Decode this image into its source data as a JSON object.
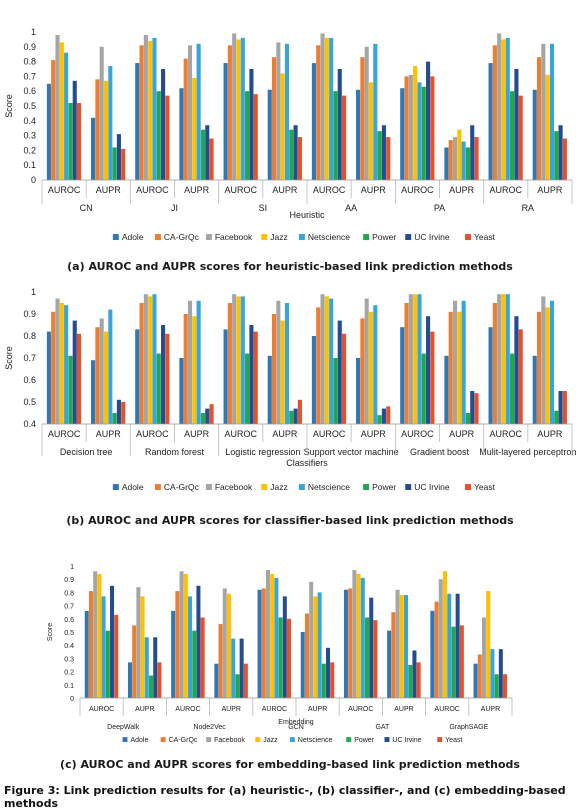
{
  "series_names": [
    "Adole",
    "CA-GrQc",
    "Facebook",
    "Jazz",
    "Netscience",
    "Power",
    "UC Irvine",
    "Yeast"
  ],
  "colors": [
    "#2f78b5",
    "#ee7d31",
    "#a5a5a5",
    "#fdc100",
    "#37a5dd",
    "#21a84a",
    "#244c8f",
    "#e5512c"
  ],
  "captions": {
    "a": "(a)  AUROC and AUPR scores for heuristic-based link prediction methods",
    "b": "(b)  AUROC and AUPR scores for classifier-based link prediction methods",
    "c": "(c)  AUROC and AUPR scores for embedding-based link prediction methods",
    "figure": "Figure 3: Link prediction results for (a) heuristic-, (b) classifier-, and (c) embedding-based methods"
  },
  "chart_data": [
    {
      "type": "bar",
      "ylabel": "Score",
      "xlabel": "Heuristic",
      "groups": [
        "CN",
        "JI",
        "SI",
        "AA",
        "PA",
        "RA"
      ],
      "subgroups": [
        "AUROC",
        "AUPR"
      ],
      "ylim": [
        0,
        1
      ],
      "yticks": [
        "0",
        "0.1",
        "0.2",
        "0.3",
        "0.4",
        "0.5",
        "0.6",
        "0.7",
        "0.8",
        "0.9",
        "1"
      ],
      "legend_position": "bottom",
      "series": [
        {
          "name": "Adole",
          "values": [
            0.65,
            0.42,
            0.79,
            0.62,
            0.79,
            0.61,
            0.79,
            0.61,
            0.62,
            0.22,
            0.79,
            0.61
          ]
        },
        {
          "name": "CA-GrQc",
          "values": [
            0.81,
            0.68,
            0.91,
            0.82,
            0.91,
            0.83,
            0.91,
            0.83,
            0.7,
            0.27,
            0.91,
            0.83
          ]
        },
        {
          "name": "Facebook",
          "values": [
            0.98,
            0.9,
            0.98,
            0.91,
            0.99,
            0.93,
            0.99,
            0.9,
            0.71,
            0.29,
            0.99,
            0.92
          ]
        },
        {
          "name": "Jazz",
          "values": [
            0.93,
            0.67,
            0.94,
            0.69,
            0.95,
            0.72,
            0.96,
            0.66,
            0.77,
            0.34,
            0.95,
            0.71
          ]
        },
        {
          "name": "Netscience",
          "values": [
            0.86,
            0.77,
            0.96,
            0.92,
            0.96,
            0.92,
            0.96,
            0.92,
            0.66,
            0.26,
            0.96,
            0.92
          ]
        },
        {
          "name": "Power",
          "values": [
            0.52,
            0.22,
            0.6,
            0.34,
            0.6,
            0.34,
            0.6,
            0.33,
            0.63,
            0.22,
            0.6,
            0.33
          ]
        },
        {
          "name": "UC Irvine",
          "values": [
            0.67,
            0.31,
            0.75,
            0.37,
            0.75,
            0.37,
            0.75,
            0.37,
            0.8,
            0.37,
            0.75,
            0.37
          ]
        },
        {
          "name": "Yeast",
          "values": [
            0.52,
            0.21,
            0.57,
            0.28,
            0.58,
            0.29,
            0.57,
            0.29,
            0.7,
            0.29,
            0.57,
            0.28
          ]
        }
      ]
    },
    {
      "type": "bar",
      "ylabel": "Score",
      "xlabel": "Classifiers",
      "groups": [
        "Decision tree",
        "Random forest",
        "Logistic regression",
        "Support vector machine",
        "Gradient boost",
        "Mulit-layered perceptron"
      ],
      "subgroups": [
        "AUROC",
        "AUPR"
      ],
      "ylim": [
        0.4,
        1
      ],
      "yticks": [
        "0.4",
        "0.5",
        "0.6",
        "0.7",
        "0.8",
        "0.9",
        "1"
      ],
      "legend_position": "bottom",
      "series": [
        {
          "name": "Adole",
          "values": [
            0.82,
            0.69,
            0.83,
            0.7,
            0.83,
            0.71,
            0.8,
            0.7,
            0.84,
            0.71,
            0.84,
            0.71
          ]
        },
        {
          "name": "CA-GrQc",
          "values": [
            0.91,
            0.84,
            0.95,
            0.9,
            0.95,
            0.9,
            0.93,
            0.88,
            0.95,
            0.91,
            0.95,
            0.91
          ]
        },
        {
          "name": "Facebook",
          "values": [
            0.97,
            0.88,
            0.99,
            0.96,
            0.99,
            0.96,
            0.99,
            0.97,
            0.99,
            0.96,
            0.99,
            0.98
          ]
        },
        {
          "name": "Jazz",
          "values": [
            0.95,
            0.82,
            0.98,
            0.89,
            0.98,
            0.87,
            0.98,
            0.91,
            0.99,
            0.91,
            0.99,
            0.93
          ]
        },
        {
          "name": "Netscience",
          "values": [
            0.94,
            0.92,
            0.99,
            0.96,
            0.98,
            0.95,
            0.97,
            0.94,
            0.99,
            0.96,
            0.99,
            0.96
          ]
        },
        {
          "name": "Power",
          "values": [
            0.71,
            0.45,
            0.72,
            0.45,
            0.72,
            0.46,
            0.7,
            0.44,
            0.72,
            0.45,
            0.72,
            0.46
          ]
        },
        {
          "name": "UC Irvine",
          "values": [
            0.87,
            0.51,
            0.85,
            0.47,
            0.85,
            0.47,
            0.87,
            0.47,
            0.89,
            0.55,
            0.89,
            0.55
          ]
        },
        {
          "name": "Yeast",
          "values": [
            0.81,
            0.5,
            0.81,
            0.49,
            0.82,
            0.51,
            0.81,
            0.48,
            0.82,
            0.54,
            0.83,
            0.55
          ]
        }
      ]
    },
    {
      "type": "bar",
      "ylabel": "Score",
      "xlabel": "Embedding",
      "groups": [
        "DeepWalk",
        "Node2Vec",
        "GCN",
        "GAT",
        "GraphSAGE"
      ],
      "subgroups": [
        "AUROC",
        "AUPR"
      ],
      "ylim": [
        0,
        1
      ],
      "yticks": [
        "0",
        "0.1",
        "0.2",
        "0.3",
        "0.4",
        "0.5",
        "0.6",
        "0.7",
        "0.8",
        "0.9",
        "1"
      ],
      "legend_position": "bottom",
      "series": [
        {
          "name": "Adole",
          "values": [
            0.66,
            0.27,
            0.66,
            0.26,
            0.82,
            0.5,
            0.82,
            0.51,
            0.66,
            0.26
          ]
        },
        {
          "name": "CA-GrQc",
          "values": [
            0.81,
            0.55,
            0.81,
            0.56,
            0.83,
            0.64,
            0.83,
            0.65,
            0.73,
            0.33
          ]
        },
        {
          "name": "Facebook",
          "values": [
            0.96,
            0.84,
            0.96,
            0.83,
            0.97,
            0.88,
            0.97,
            0.82,
            0.9,
            0.61
          ]
        },
        {
          "name": "Jazz",
          "values": [
            0.94,
            0.77,
            0.94,
            0.79,
            0.94,
            0.77,
            0.94,
            0.78,
            0.96,
            0.81
          ]
        },
        {
          "name": "Netscience",
          "values": [
            0.77,
            0.46,
            0.77,
            0.45,
            0.91,
            0.8,
            0.91,
            0.78,
            0.79,
            0.37
          ]
        },
        {
          "name": "Power",
          "values": [
            0.51,
            0.17,
            0.51,
            0.18,
            0.61,
            0.26,
            0.61,
            0.25,
            0.54,
            0.18
          ]
        },
        {
          "name": "UC Irvine",
          "values": [
            0.85,
            0.46,
            0.85,
            0.45,
            0.77,
            0.38,
            0.76,
            0.36,
            0.79,
            0.37
          ]
        },
        {
          "name": "Yeast",
          "values": [
            0.63,
            0.27,
            0.61,
            0.26,
            0.6,
            0.27,
            0.59,
            0.27,
            0.55,
            0.18
          ]
        }
      ]
    }
  ]
}
